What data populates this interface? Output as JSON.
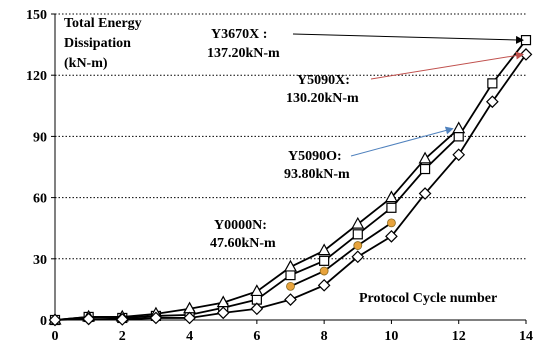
{
  "chart_data": {
    "type": "line",
    "ylabel_lines": [
      "Total Energy",
      "Dissipation",
      "(kN-m)"
    ],
    "xlabel": "Protocol Cycle number",
    "xlim": [
      0,
      14
    ],
    "ylim": [
      0,
      150
    ],
    "xticks": [
      0,
      2,
      4,
      6,
      8,
      10,
      12,
      14
    ],
    "yticks": [
      0,
      30,
      60,
      90,
      120,
      150
    ],
    "grid": "horizontal",
    "series": [
      {
        "marker": "square",
        "color": "#000000",
        "x": [
          0,
          1,
          2,
          3,
          4,
          5,
          6,
          7,
          8,
          9,
          10,
          11,
          12,
          13,
          14
        ],
        "y": [
          0,
          1.5,
          1.0,
          2.0,
          2.5,
          6.0,
          10.0,
          22.0,
          29.0,
          42.0,
          55.0,
          74.0,
          90.0,
          116.0,
          137.2
        ]
      },
      {
        "marker": "triangle",
        "color": "#000000",
        "x": [
          0,
          1,
          2,
          3,
          4,
          5,
          6,
          7,
          8,
          9,
          10,
          11,
          12
        ],
        "y": [
          0,
          1.5,
          1.5,
          3.0,
          5.5,
          8.5,
          14.0,
          26.0,
          34.0,
          47.0,
          60.0,
          79.0,
          93.8
        ]
      },
      {
        "marker": "diamond",
        "color": "#000000",
        "x": [
          0,
          1,
          2,
          3,
          4,
          5,
          6,
          7,
          8,
          9,
          10,
          11,
          12,
          13,
          14
        ],
        "y": [
          0,
          0.5,
          0.3,
          1.0,
          1.0,
          3.5,
          5.5,
          10.0,
          17.0,
          31.0,
          41.0,
          62.0,
          81.0,
          107.0,
          130.2
        ]
      },
      {
        "marker": "circle",
        "color": "#e8a33c",
        "x": [
          7,
          8,
          9,
          10
        ],
        "y": [
          16.5,
          24.0,
          36.5,
          47.6
        ]
      }
    ],
    "annotations": [
      {
        "lines": [
          "Y3670X :",
          "137.20kN-m"
        ],
        "arrow_color": "#000000"
      },
      {
        "lines": [
          "Y5090X:",
          "130.20kN-m"
        ],
        "arrow_color": "#c0504d"
      },
      {
        "lines": [
          "Y5090O:",
          "93.80kN-m"
        ],
        "arrow_color": "#4f81bd"
      },
      {
        "lines": [
          "Y0000N:",
          "47.60kN-m"
        ],
        "arrow_color": null
      }
    ]
  }
}
